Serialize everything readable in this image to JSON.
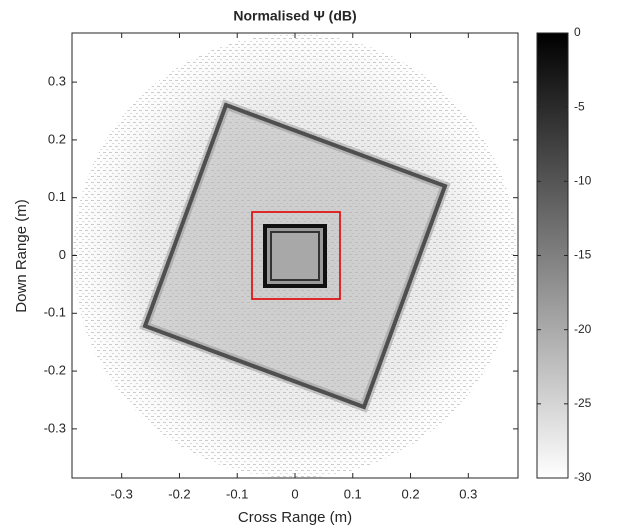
{
  "chart_data": {
    "type": "image",
    "title": "Normalised Ψ (dB)",
    "x_label": "Cross Range (m)",
    "y_label": "Down Range (m)",
    "xlim": [
      -0.386,
      0.386
    ],
    "xticks": [
      -0.3,
      -0.2,
      -0.1,
      0,
      0.1,
      0.2,
      0.3
    ],
    "ylim": [
      -0.385,
      0.385
    ],
    "yticks": [
      -0.3,
      -0.2,
      -0.1,
      0,
      0.1,
      0.2,
      0.3
    ],
    "colorbar": {
      "clim": [
        -30,
        0
      ],
      "ticks": [
        0,
        -5,
        -10,
        -15,
        -20,
        -25,
        -30
      ],
      "colormap": [
        "#ffffff",
        "#000000"
      ]
    }
  }
}
